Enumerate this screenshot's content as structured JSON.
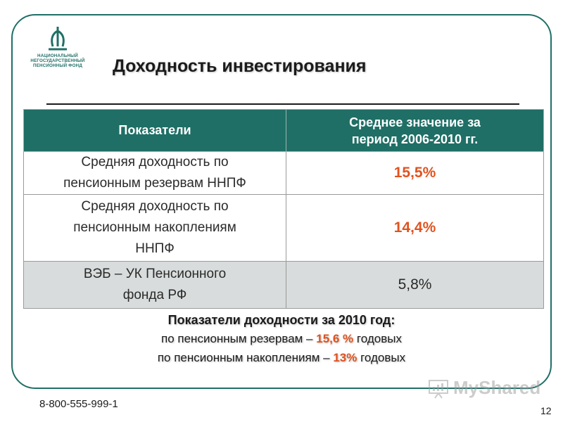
{
  "logo": {
    "line1": "НАЦИОНАЛЬНЫЙ",
    "line2": "НЕГОСУДАРСТВЕННЫЙ",
    "line3": "ПЕНСИОННЫЙ ФОНД",
    "color": "#1f6f66"
  },
  "title": "Доходность инвестирования",
  "table": {
    "headers": [
      "Показатели",
      "Среднее значение за период 2006-2010 гг."
    ],
    "rows": [
      {
        "label": "Средняя доходность по пенсионным резервам ННПФ",
        "value": "15,5%"
      },
      {
        "label": "Средняя доходность по пенсионным накоплениям ННПФ",
        "value": "14,4%"
      },
      {
        "label": "ВЭБ – УК Пенсионного фонда РФ",
        "value": "5,8%"
      }
    ]
  },
  "summary": {
    "heading": "Показатели доходности за 2010 год:",
    "line1_prefix": "по пенсионным резервам –",
    "line1_value": "15,6 %",
    "line1_suffix": "годовых",
    "line2_prefix": "по пенсионным накоплениям –",
    "line2_value": "13%",
    "line2_suffix": "годовых"
  },
  "phone": "8-800-555-999-1",
  "page_number": "12",
  "watermark": "MyShared",
  "colors": {
    "accent": "#1f6f66",
    "highlight": "#e0531f",
    "gray_row": "#d8dcdc"
  }
}
